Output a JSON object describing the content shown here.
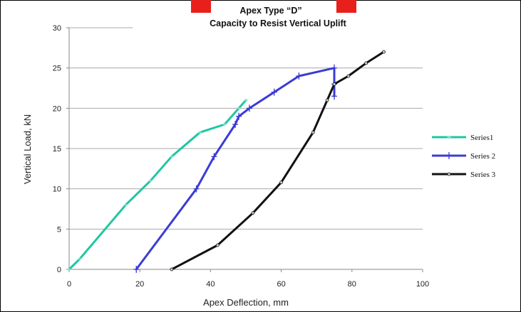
{
  "chart_data": {
    "type": "line",
    "title": "Apex Type “D”",
    "subtitle": "Capacity to Resist Vertical Uplift",
    "xlabel": "Apex Deflection, mm",
    "ylabel": "Vertical Load, kN",
    "xlim": [
      0,
      100
    ],
    "ylim": [
      0,
      30
    ],
    "x_ticks": [
      0,
      20,
      40,
      60,
      80,
      100
    ],
    "y_ticks": [
      0,
      5,
      10,
      15,
      20,
      25,
      30
    ],
    "grid": "horizontal",
    "legend_position": "right",
    "series": [
      {
        "name": "Series1",
        "color": "#1fc7a0",
        "marker": "dash",
        "points": [
          [
            0,
            0
          ],
          [
            3,
            1.3
          ],
          [
            16,
            8
          ],
          [
            23,
            11
          ],
          [
            29,
            14
          ],
          [
            37,
            17
          ],
          [
            44,
            18
          ],
          [
            48,
            20
          ],
          [
            50,
            21
          ]
        ]
      },
      {
        "name": "Series 2",
        "color": "#3b3bd6",
        "marker": "plus",
        "points": [
          [
            19,
            0
          ],
          [
            36,
            10
          ],
          [
            41,
            14
          ],
          [
            47,
            18
          ],
          [
            48,
            19
          ],
          [
            51,
            20
          ],
          [
            58,
            22
          ],
          [
            65,
            24
          ],
          [
            75,
            25
          ],
          [
            75,
            23
          ],
          [
            75,
            21.5
          ]
        ]
      },
      {
        "name": "Series 3",
        "color": "#111111",
        "marker": "circle",
        "points": [
          [
            29,
            0
          ],
          [
            42,
            3
          ],
          [
            52,
            7
          ],
          [
            60,
            10.8
          ],
          [
            69,
            17
          ],
          [
            73,
            21
          ],
          [
            75,
            23
          ],
          [
            79,
            24
          ],
          [
            84,
            25.6
          ],
          [
            89,
            27
          ]
        ]
      }
    ]
  },
  "colors": {
    "header_accent": "#e8201c",
    "grid": "#a8a8a8"
  }
}
